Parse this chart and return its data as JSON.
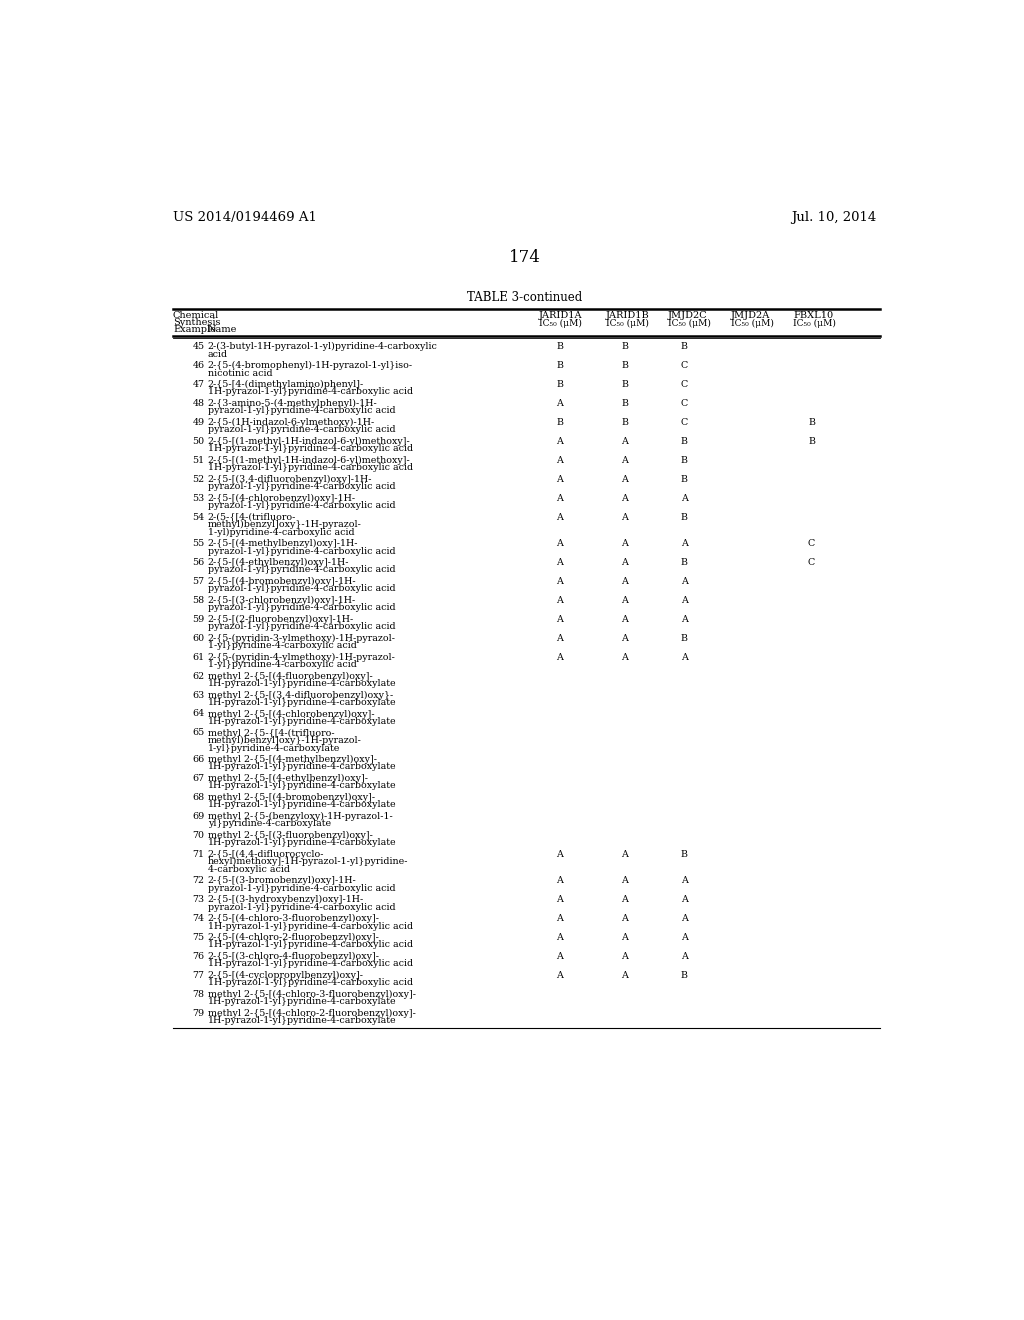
{
  "page_number": "174",
  "patent_number": "US 2014/0194469 A1",
  "patent_date": "Jul. 10, 2014",
  "table_title": "TABLE 3-continued",
  "rows": [
    [
      "45",
      "2-(3-butyl-1H-pyrazol-1-yl)pyridine-4-carboxylic\nacid",
      "B",
      "B",
      "B",
      "",
      ""
    ],
    [
      "46",
      "2-{5-(4-bromophenyl)-1H-pyrazol-1-yl}iso-\nnicotinic acid",
      "B",
      "B",
      "C",
      "",
      ""
    ],
    [
      "47",
      "2-{5-[4-(dimethylamino)phenyl]-\n1H-pyrazol-1-yl}pyridine-4-carboxylic acid",
      "B",
      "B",
      "C",
      "",
      ""
    ],
    [
      "48",
      "2-{3-amino-5-(4-methylphenyl)-1H-\npyrazol-1-yl}pyridine-4-carboxylic acid",
      "A",
      "B",
      "C",
      "",
      ""
    ],
    [
      "49",
      "2-{5-(1H-indazol-6-ylmethoxy)-1H-\npyrazol-1-yl}pyridine-4-carboxylic acid",
      "B",
      "B",
      "C",
      "",
      "B"
    ],
    [
      "50",
      "2-{5-[(1-methyl-1H-indazol-6-yl)methoxy]-\n1H-pyrazol-1-yl}pyridine-4-carboxylic acid",
      "A",
      "A",
      "B",
      "",
      "B"
    ],
    [
      "51",
      "2-{5-[(1-methyl-1H-indazol-6-yl)methoxy]-\n1H-pyrazol-1-yl}pyridine-4-carboxylic acid",
      "A",
      "A",
      "B",
      "",
      ""
    ],
    [
      "52",
      "2-{5-[(3,4-difluorobenzyl)oxy]-1H-\npyrazol-1-yl}pyridine-4-carboxylic acid",
      "A",
      "A",
      "B",
      "",
      ""
    ],
    [
      "53",
      "2-{5-[(4-chlorobenzyl)oxy]-1H-\npyrazol-1-yl}pyridine-4-carboxylic acid",
      "A",
      "A",
      "A",
      "",
      ""
    ],
    [
      "54",
      "2-(5-{[4-(trifluoro-\nmethyl)benzyl]oxy}-1H-pyrazol-\n1-yl)pyridine-4-carboxylic acid",
      "A",
      "A",
      "B",
      "",
      ""
    ],
    [
      "55",
      "2-{5-[(4-methylbenzyl)oxy]-1H-\npyrazol-1-yl}pyridine-4-carboxylic acid",
      "A",
      "A",
      "A",
      "",
      "C"
    ],
    [
      "56",
      "2-{5-[(4-ethylbenzyl)oxy]-1H-\npyrazol-1-yl}pyridine-4-carboxylic acid",
      "A",
      "A",
      "B",
      "",
      "C"
    ],
    [
      "57",
      "2-{5-[(4-bromobenzyl)oxy]-1H-\npyrazol-1-yl}pyridine-4-carboxylic acid",
      "A",
      "A",
      "A",
      "",
      ""
    ],
    [
      "58",
      "2-{5-[(3-chlorobenzyl)oxy]-1H-\npyrazol-1-yl}pyridine-4-carboxylic acid",
      "A",
      "A",
      "A",
      "",
      ""
    ],
    [
      "59",
      "2-{5-[(2-fluorobenzyl)oxy]-1H-\npyrazol-1-yl}pyridine-4-carboxylic acid",
      "A",
      "A",
      "A",
      "",
      ""
    ],
    [
      "60",
      "2-{5-(pyridin-3-ylmethoxy)-1H-pyrazol-\n1-yl}pyridine-4-carboxylic acid",
      "A",
      "A",
      "B",
      "",
      ""
    ],
    [
      "61",
      "2-{5-(pyridin-4-ylmethoxy)-1H-pyrazol-\n1-yl}pyridine-4-carboxylic acid",
      "A",
      "A",
      "A",
      "",
      ""
    ],
    [
      "62",
      "methyl 2-{5-[(4-fluorobenzyl)oxy]-\n1H-pyrazol-1-yl}pyridine-4-carboxylate",
      "",
      "",
      "",
      "",
      ""
    ],
    [
      "63",
      "methyl 2-{5-[(3,4-difluorobenzyl)oxy}-\n1H-pyrazol-1-yl}pyridine-4-carboxylate",
      "",
      "",
      "",
      "",
      ""
    ],
    [
      "64",
      "methyl 2-{5-[(4-chlorobenzyl)oxy]-\n1H-pyrazol-1-yl}pyridine-4-carboxylate",
      "",
      "",
      "",
      "",
      ""
    ],
    [
      "65",
      "methyl 2-{5-{[4-(trifluoro-\nmethyl)benzyl]oxy}-1H-pyrazol-\n1-yl}pyridine-4-carboxylate",
      "",
      "",
      "",
      "",
      ""
    ],
    [
      "66",
      "methyl 2-{5-[(4-methylbenzyl)oxy]-\n1H-pyrazol-1-yl}pyridine-4-carboxylate",
      "",
      "",
      "",
      "",
      ""
    ],
    [
      "67",
      "methyl 2-{5-[(4-ethylbenzyl)oxy]-\n1H-pyrazol-1-yl}pyridine-4-carboxylate",
      "",
      "",
      "",
      "",
      ""
    ],
    [
      "68",
      "methyl 2-{5-[(4-bromobenzyl)oxy]-\n1H-pyrazol-1-yl}pyridine-4-carboxylate",
      "",
      "",
      "",
      "",
      ""
    ],
    [
      "69",
      "methyl 2-{5-(benzyloxy)-1H-pyrazol-1-\nyl}pyridine-4-carboxylate",
      "",
      "",
      "",
      "",
      ""
    ],
    [
      "70",
      "methyl 2-{5-[(3-fluorobenzyl)oxy]-\n1H-pyrazol-1-yl}pyridine-4-carboxylate",
      "",
      "",
      "",
      "",
      ""
    ],
    [
      "71",
      "2-{5-[(4,4-difluorocyclo-\nhexyl)methoxy]-1H-pyrazol-1-yl}pyridine-\n4-carboxylic acid",
      "A",
      "A",
      "B",
      "",
      ""
    ],
    [
      "72",
      "2-{5-[(3-bromobenzyl)oxy]-1H-\npyrazol-1-yl}pyridine-4-carboxylic acid",
      "A",
      "A",
      "A",
      "",
      ""
    ],
    [
      "73",
      "2-{5-[(3-hydroxybenzyl)oxy]-1H-\npyrazol-1-yl}pyridine-4-carboxylic acid",
      "A",
      "A",
      "A",
      "",
      ""
    ],
    [
      "74",
      "2-{5-[(4-chloro-3-fluorobenzyl)oxy]-\n1H-pyrazol-1-yl}pyridine-4-carboxylic acid",
      "A",
      "A",
      "A",
      "",
      ""
    ],
    [
      "75",
      "2-{5-[(4-chloro-2-fluorobenzyl)oxy]-\n1H-pyrazol-1-yl}pyridine-4-carboxylic acid",
      "A",
      "A",
      "A",
      "",
      ""
    ],
    [
      "76",
      "2-{5-[(3-chloro-4-fluorobenzyl)oxy]-\n1H-pyrazol-1-yl}pyridine-4-carboxylic acid",
      "A",
      "A",
      "A",
      "",
      ""
    ],
    [
      "77",
      "2-{5-[(4-cyclopropylbenzyl)oxy]-\n1H-pyrazol-1-yl}pyridine-4-carboxylic acid",
      "A",
      "A",
      "B",
      "",
      ""
    ],
    [
      "78",
      "methyl 2-{5-[(4-chloro-3-fluorobenzyl)oxy]-\n1H-pyrazol-1-yl}pyridine-4-carboxylate",
      "",
      "",
      "",
      "",
      ""
    ],
    [
      "79",
      "methyl 2-{5-[(4-chloro-2-fluorobenzyl)oxy]-\n1H-pyrazol-1-yl}pyridine-4-carboxylate",
      "",
      "",
      "",
      "",
      ""
    ]
  ]
}
